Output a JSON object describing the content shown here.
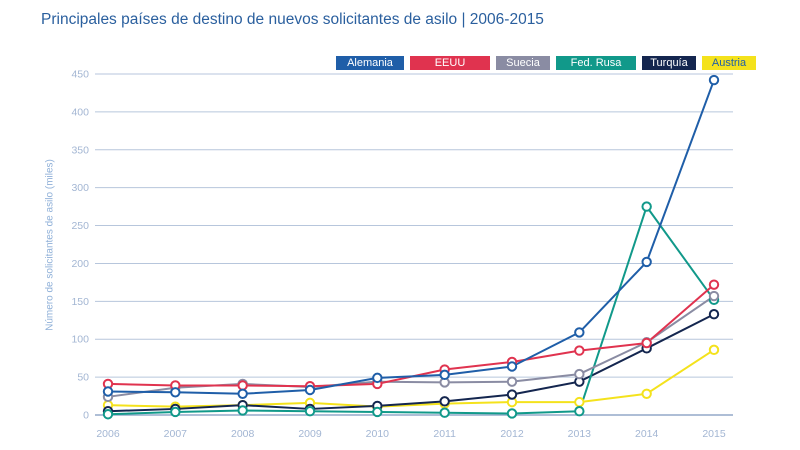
{
  "chart_data": {
    "type": "line",
    "title": "Principales países de destino de nuevos solicitantes de asilo | 2006-2015",
    "xlabel": "",
    "ylabel": "Número de solicitantes de asilo (miles)",
    "ylim": [
      0,
      450
    ],
    "yticks": [
      0,
      50,
      100,
      150,
      200,
      250,
      300,
      350,
      400,
      450
    ],
    "x": [
      "2006",
      "2007",
      "2008",
      "2009",
      "2010",
      "2011",
      "2012",
      "2013",
      "2014",
      "2015"
    ],
    "grid": true,
    "legend_position": "top-right",
    "series": [
      {
        "name": "Alemania",
        "color": "#1f5ea8",
        "values": [
          31,
          30,
          28,
          33,
          49,
          53,
          64,
          109,
          202,
          442
        ]
      },
      {
        "name": "EEUU",
        "color": "#e0334f",
        "values": [
          41,
          39,
          39,
          38,
          41,
          60,
          70,
          85,
          95,
          172
        ]
      },
      {
        "name": "Suecia",
        "color": "#8a8ca3",
        "values": [
          24,
          36,
          41,
          37,
          44,
          43,
          44,
          54,
          96,
          157
        ]
      },
      {
        "name": "Fed. Rusa",
        "color": "#11998a",
        "values": [
          1,
          4,
          6,
          5,
          4,
          3,
          2,
          5,
          275,
          152
        ]
      },
      {
        "name": "Turquía",
        "color": "#14264f",
        "values": [
          5,
          8,
          13,
          8,
          12,
          18,
          27,
          44,
          88,
          133
        ]
      },
      {
        "name": "Austria",
        "color": "#f4e21c",
        "values": [
          13,
          11,
          13,
          16,
          11,
          15,
          17,
          17,
          28,
          86
        ]
      }
    ]
  }
}
